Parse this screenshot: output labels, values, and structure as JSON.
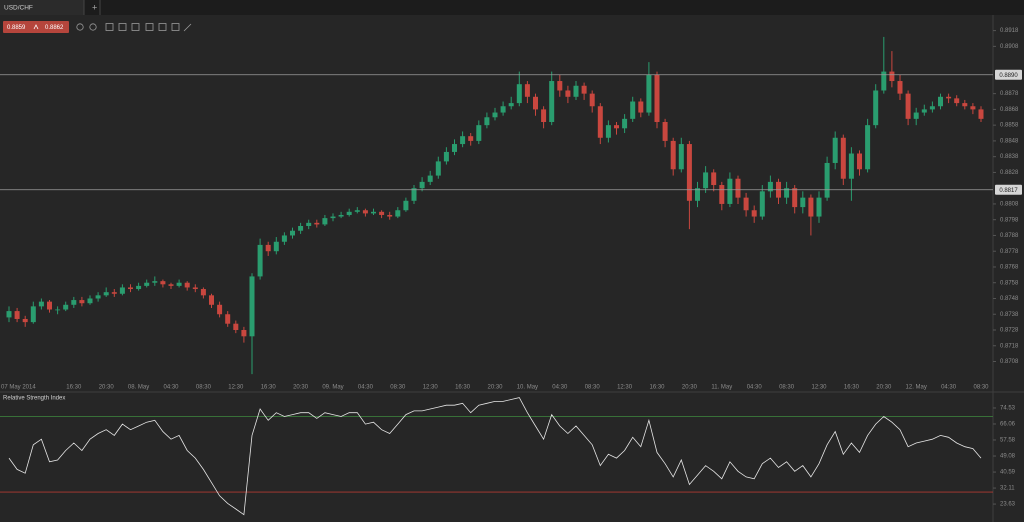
{
  "tab": "USD/CHF",
  "quote": {
    "bid": "0.8859",
    "ask": "0.8862"
  },
  "chart_data": [
    {
      "type": "candlestick",
      "categories": [
        "07 May 2014",
        null,
        null,
        null,
        null,
        null,
        null,
        null,
        "16:30",
        null,
        null,
        null,
        "20:30",
        null,
        null,
        null,
        "08. May",
        null,
        null,
        null,
        "04:30",
        null,
        null,
        null,
        "08:30",
        null,
        null,
        null,
        "12:30",
        null,
        null,
        null,
        "16:30",
        null,
        null,
        null,
        "20:30",
        null,
        null,
        null,
        "09. May",
        null,
        null,
        null,
        "04:30",
        null,
        null,
        null,
        "08:30",
        null,
        null,
        null,
        "12:30",
        null,
        null,
        null,
        "16:30",
        null,
        null,
        null,
        "20:30",
        null,
        null,
        null,
        "10. May",
        null,
        null,
        null,
        "04:30",
        null,
        null,
        null,
        "08:30",
        null,
        null,
        null,
        "12:30",
        null,
        null,
        null,
        "16:30",
        null,
        null,
        null,
        "20:30",
        null,
        null,
        null,
        "11. May",
        null,
        null,
        null,
        "04:30",
        null,
        null,
        null,
        "08:30",
        null,
        null,
        null,
        "12:30",
        null,
        null,
        null,
        "16:30",
        null,
        null,
        null,
        "20:30",
        null,
        null,
        null,
        "12. May",
        null,
        null,
        null,
        "04:30",
        null,
        null,
        null,
        "08:30"
      ],
      "open": [
        0.8736,
        0.874,
        0.8735,
        0.8733,
        0.8743,
        0.8746,
        0.8741,
        0.8741,
        0.8744,
        0.8747,
        0.8745,
        0.8748,
        0.875,
        0.8752,
        0.8751,
        0.8755,
        0.8754,
        0.8756,
        0.8758,
        0.8759,
        0.8757,
        0.8756,
        0.8758,
        0.8755,
        0.8754,
        0.875,
        0.8744,
        0.8738,
        0.8732,
        0.8728,
        0.8724,
        0.8762,
        0.8782,
        0.8778,
        0.8784,
        0.8788,
        0.8791,
        0.8794,
        0.8796,
        0.8795,
        0.8799,
        0.88,
        0.8801,
        0.8803,
        0.8804,
        0.8802,
        0.8803,
        0.8801,
        0.88,
        0.8804,
        0.881,
        0.8818,
        0.8822,
        0.8826,
        0.8835,
        0.8841,
        0.8846,
        0.8851,
        0.8848,
        0.8858,
        0.8863,
        0.8866,
        0.887,
        0.8872,
        0.8884,
        0.8876,
        0.8868,
        0.886,
        0.8886,
        0.888,
        0.8876,
        0.8883,
        0.8878,
        0.887,
        0.885,
        0.8858,
        0.8856,
        0.8862,
        0.8873,
        0.8866,
        0.889,
        0.886,
        0.8848,
        0.883,
        0.8846,
        0.881,
        0.8818,
        0.8828,
        0.882,
        0.8808,
        0.8824,
        0.8812,
        0.8804,
        0.88,
        0.8816,
        0.8822,
        0.8812,
        0.8818,
        0.8806,
        0.8812,
        0.88,
        0.8812,
        0.8834,
        0.885,
        0.8824,
        0.884,
        0.883,
        0.8858,
        0.888,
        0.8892,
        0.8886,
        0.8878,
        0.8862,
        0.8866,
        0.8868,
        0.887,
        0.8876,
        0.8875,
        0.8872,
        0.887,
        0.8868
      ],
      "high": [
        0.8743,
        0.8742,
        0.8737,
        0.8746,
        0.8748,
        0.8747,
        0.8743,
        0.8746,
        0.8749,
        0.8749,
        0.875,
        0.8752,
        0.8755,
        0.8754,
        0.8757,
        0.8757,
        0.8758,
        0.876,
        0.8762,
        0.876,
        0.8758,
        0.876,
        0.8759,
        0.8757,
        0.8755,
        0.8751,
        0.8746,
        0.874,
        0.8734,
        0.873,
        0.8764,
        0.8786,
        0.8784,
        0.8787,
        0.879,
        0.8793,
        0.8796,
        0.8798,
        0.8798,
        0.8801,
        0.8802,
        0.8803,
        0.8805,
        0.8806,
        0.8805,
        0.8805,
        0.8804,
        0.8803,
        0.8806,
        0.8812,
        0.882,
        0.8825,
        0.8829,
        0.8838,
        0.8844,
        0.8849,
        0.8854,
        0.8853,
        0.8861,
        0.8866,
        0.8869,
        0.8873,
        0.8876,
        0.8892,
        0.8886,
        0.8878,
        0.887,
        0.8892,
        0.889,
        0.8883,
        0.8886,
        0.8885,
        0.888,
        0.8872,
        0.8861,
        0.886,
        0.8865,
        0.8876,
        0.8875,
        0.8898,
        0.8892,
        0.8862,
        0.885,
        0.885,
        0.8848,
        0.8822,
        0.8832,
        0.883,
        0.8822,
        0.8828,
        0.8826,
        0.8815,
        0.8807,
        0.882,
        0.8826,
        0.8824,
        0.8822,
        0.882,
        0.8816,
        0.8814,
        0.8816,
        0.8838,
        0.8854,
        0.8852,
        0.8844,
        0.8842,
        0.8862,
        0.8884,
        0.8914,
        0.8905,
        0.889,
        0.888,
        0.8869,
        0.8871,
        0.8873,
        0.8878,
        0.8878,
        0.8877,
        0.8874,
        0.8872,
        0.887
      ],
      "low": [
        0.8733,
        0.8733,
        0.873,
        0.8732,
        0.8741,
        0.8739,
        0.8738,
        0.874,
        0.8742,
        0.8743,
        0.8744,
        0.8746,
        0.8749,
        0.8749,
        0.875,
        0.8752,
        0.8753,
        0.8755,
        0.8756,
        0.8755,
        0.8754,
        0.8755,
        0.8753,
        0.8752,
        0.8748,
        0.8742,
        0.8736,
        0.873,
        0.8726,
        0.872,
        0.87,
        0.876,
        0.8775,
        0.8776,
        0.8782,
        0.8786,
        0.8789,
        0.8792,
        0.8793,
        0.8794,
        0.8797,
        0.8799,
        0.88,
        0.8802,
        0.88,
        0.8801,
        0.8799,
        0.8798,
        0.8799,
        0.8803,
        0.8808,
        0.8816,
        0.882,
        0.8824,
        0.8833,
        0.8839,
        0.8844,
        0.8845,
        0.8846,
        0.8856,
        0.8861,
        0.8864,
        0.8868,
        0.887,
        0.8872,
        0.8864,
        0.8856,
        0.8858,
        0.8876,
        0.8872,
        0.8874,
        0.8874,
        0.8866,
        0.8846,
        0.8847,
        0.8852,
        0.8853,
        0.886,
        0.8863,
        0.8864,
        0.8856,
        0.8844,
        0.8826,
        0.8828,
        0.8792,
        0.8806,
        0.8815,
        0.8816,
        0.8804,
        0.8806,
        0.8808,
        0.88,
        0.8796,
        0.8798,
        0.8812,
        0.8808,
        0.8808,
        0.8802,
        0.8802,
        0.8788,
        0.8796,
        0.881,
        0.883,
        0.882,
        0.881,
        0.8826,
        0.8828,
        0.8856,
        0.8878,
        0.8882,
        0.8874,
        0.8858,
        0.8858,
        0.8864,
        0.8866,
        0.8868,
        0.8872,
        0.887,
        0.8868,
        0.8865,
        0.886
      ],
      "close": [
        0.874,
        0.8735,
        0.8733,
        0.8743,
        0.8746,
        0.8741,
        0.8741,
        0.8744,
        0.8747,
        0.8745,
        0.8748,
        0.875,
        0.8752,
        0.8751,
        0.8755,
        0.8754,
        0.8756,
        0.8758,
        0.8759,
        0.8757,
        0.8756,
        0.8758,
        0.8755,
        0.8754,
        0.875,
        0.8744,
        0.8738,
        0.8732,
        0.8728,
        0.8724,
        0.8762,
        0.8782,
        0.8778,
        0.8784,
        0.8788,
        0.8791,
        0.8794,
        0.8796,
        0.8795,
        0.8799,
        0.88,
        0.8801,
        0.8803,
        0.8804,
        0.8802,
        0.8803,
        0.8801,
        0.88,
        0.8804,
        0.881,
        0.8818,
        0.8822,
        0.8826,
        0.8835,
        0.8841,
        0.8846,
        0.8851,
        0.8848,
        0.8858,
        0.8863,
        0.8866,
        0.887,
        0.8872,
        0.8884,
        0.8876,
        0.8868,
        0.886,
        0.8886,
        0.888,
        0.8876,
        0.8883,
        0.8878,
        0.887,
        0.885,
        0.8858,
        0.8856,
        0.8862,
        0.8873,
        0.8866,
        0.889,
        0.886,
        0.8848,
        0.883,
        0.8846,
        0.881,
        0.8818,
        0.8828,
        0.882,
        0.8808,
        0.8824,
        0.8812,
        0.8804,
        0.88,
        0.8816,
        0.8822,
        0.8812,
        0.8818,
        0.8806,
        0.8812,
        0.88,
        0.8812,
        0.8834,
        0.885,
        0.8824,
        0.884,
        0.883,
        0.8858,
        0.888,
        0.8892,
        0.8886,
        0.8878,
        0.8862,
        0.8866,
        0.8868,
        0.887,
        0.8876,
        0.8875,
        0.8872,
        0.887,
        0.8868,
        0.8862
      ],
      "up_color": "#2a9d6f",
      "down_color": "#c9473f",
      "ylim": [
        0.8695,
        0.8926
      ],
      "yticks": [
        0.8918,
        0.8908,
        0.8878,
        0.8868,
        0.8858,
        0.8848,
        0.8838,
        0.8828,
        0.8808,
        0.8798,
        0.8788,
        0.8778,
        0.8768,
        0.8758,
        0.8748,
        0.8738,
        0.8728,
        0.8718,
        0.8708
      ],
      "price_lines": [
        {
          "value": 0.889,
          "label": "0.8890"
        },
        0.8817
      ],
      "grid": false
    },
    {
      "type": "line",
      "title": "Relative Strength Index",
      "color": "#e6e6e6",
      "values": [
        48,
        42,
        40,
        55,
        58,
        46,
        47,
        52,
        56,
        52,
        58,
        61,
        63,
        60,
        66,
        63,
        65,
        67,
        68,
        62,
        58,
        60,
        52,
        48,
        42,
        35,
        28,
        24,
        21,
        18,
        60,
        74,
        68,
        72,
        70,
        71,
        72,
        72,
        69,
        72,
        71,
        70,
        72,
        72,
        66,
        67,
        63,
        61,
        66,
        71,
        73,
        73,
        74,
        75,
        76,
        76,
        77,
        72,
        76,
        77,
        78,
        78,
        79,
        80,
        72,
        65,
        58,
        71,
        65,
        61,
        65,
        60,
        55,
        44,
        50,
        48,
        52,
        59,
        54,
        68,
        51,
        45,
        38,
        47,
        34,
        39,
        44,
        41,
        37,
        46,
        41,
        38,
        37,
        45,
        48,
        43,
        46,
        41,
        44,
        38,
        45,
        55,
        62,
        50,
        56,
        51,
        60,
        66,
        70,
        67,
        63,
        54,
        56,
        57,
        58,
        60,
        59,
        56,
        54,
        53,
        48
      ],
      "ylim": [
        15.2,
        81.4
      ],
      "yticks": [
        74.53,
        66.06,
        57.58,
        49.08,
        40.59,
        32.11,
        23.63
      ],
      "levels": [
        {
          "value": 70,
          "color": "#3f8a3f"
        },
        {
          "value": 30,
          "color": "#b03a32"
        }
      ],
      "grid": false
    }
  ]
}
